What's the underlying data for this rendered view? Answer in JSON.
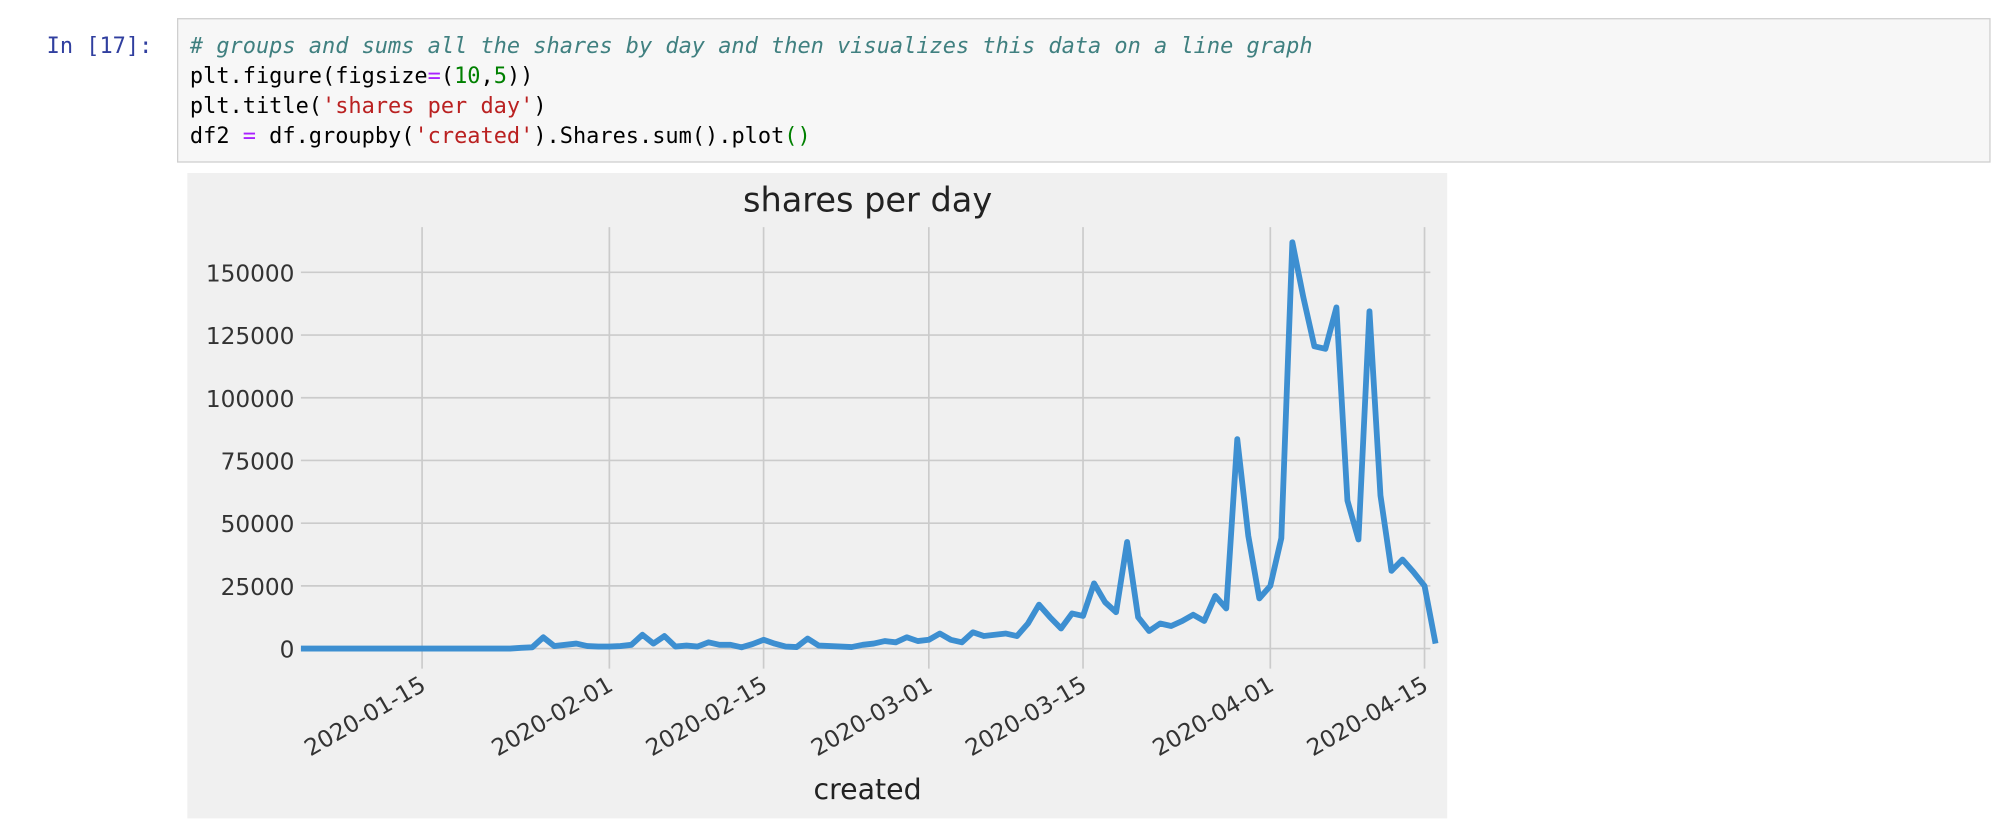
{
  "prompt": "In [17]:",
  "code": [
    [
      {
        "text": "# groups and sums all the shares by day and then visualizes this data on a line graph",
        "color": "#408080"
      }
    ],
    [
      {
        "text": "plt.figure(figsize",
        "color": "#000000"
      },
      {
        "text": "=",
        "color": "#aa22ff"
      },
      {
        "text": "(",
        "color": "#000000"
      },
      {
        "text": "10",
        "color": "#008000"
      },
      {
        "text": ",",
        "color": "#000000"
      },
      {
        "text": "5",
        "color": "#008000"
      },
      {
        "text": "))",
        "color": "#000000"
      }
    ],
    [
      {
        "text": "plt.title(",
        "color": "#000000"
      },
      {
        "text": "'shares per day'",
        "color": "#ba2121"
      },
      {
        "text": ")",
        "color": "#000000"
      }
    ],
    [
      {
        "text": "df2 ",
        "color": "#000000"
      },
      {
        "text": "=",
        "color": "#aa22ff"
      },
      {
        "text": " df.groupby(",
        "color": "#000000"
      },
      {
        "text": "'created'",
        "color": "#ba2121"
      },
      {
        "text": ").Shares.sum().plot",
        "color": "#000000"
      },
      {
        "text": "()",
        "color": "#008000"
      }
    ]
  ],
  "chart_data": {
    "type": "line",
    "title": "shares per day",
    "x_label": "created",
    "x": [
      "2020-01-04",
      "2020-01-05",
      "2020-01-06",
      "2020-01-07",
      "2020-01-08",
      "2020-01-09",
      "2020-01-10",
      "2020-01-11",
      "2020-01-12",
      "2020-01-13",
      "2020-01-14",
      "2020-01-15",
      "2020-01-16",
      "2020-01-17",
      "2020-01-18",
      "2020-01-19",
      "2020-01-20",
      "2020-01-21",
      "2020-01-22",
      "2020-01-23",
      "2020-01-24",
      "2020-01-25",
      "2020-01-26",
      "2020-01-27",
      "2020-01-28",
      "2020-01-29",
      "2020-01-30",
      "2020-01-31",
      "2020-02-01",
      "2020-02-02",
      "2020-02-03",
      "2020-02-04",
      "2020-02-05",
      "2020-02-06",
      "2020-02-07",
      "2020-02-08",
      "2020-02-09",
      "2020-02-10",
      "2020-02-11",
      "2020-02-12",
      "2020-02-13",
      "2020-02-14",
      "2020-02-15",
      "2020-02-16",
      "2020-02-17",
      "2020-02-18",
      "2020-02-19",
      "2020-02-20",
      "2020-02-21",
      "2020-02-22",
      "2020-02-23",
      "2020-02-24",
      "2020-02-25",
      "2020-02-26",
      "2020-02-27",
      "2020-02-28",
      "2020-02-29",
      "2020-03-01",
      "2020-03-02",
      "2020-03-03",
      "2020-03-04",
      "2020-03-05",
      "2020-03-06",
      "2020-03-07",
      "2020-03-08",
      "2020-03-09",
      "2020-03-10",
      "2020-03-11",
      "2020-03-12",
      "2020-03-13",
      "2020-03-14",
      "2020-03-15",
      "2020-03-16",
      "2020-03-17",
      "2020-03-18",
      "2020-03-19",
      "2020-03-20",
      "2020-03-21",
      "2020-03-22",
      "2020-03-23",
      "2020-03-24",
      "2020-03-25",
      "2020-03-26",
      "2020-03-27",
      "2020-03-28",
      "2020-03-29",
      "2020-03-30",
      "2020-03-31",
      "2020-04-01",
      "2020-04-02",
      "2020-04-03",
      "2020-04-04",
      "2020-04-05",
      "2020-04-06",
      "2020-04-07",
      "2020-04-08",
      "2020-04-09",
      "2020-04-10",
      "2020-04-11",
      "2020-04-12",
      "2020-04-13",
      "2020-04-14",
      "2020-04-15",
      "2020-04-16"
    ],
    "series": [
      {
        "name": "Shares",
        "color": "#3d8fd1",
        "values": [
          0,
          0,
          0,
          0,
          0,
          0,
          0,
          0,
          0,
          0,
          0,
          0,
          0,
          0,
          0,
          0,
          0,
          0,
          0,
          0,
          300,
          500,
          4500,
          1000,
          1500,
          2000,
          1000,
          800,
          800,
          1000,
          1500,
          5500,
          2000,
          5000,
          800,
          1200,
          800,
          2500,
          1500,
          1500,
          500,
          1800,
          3500,
          2000,
          800,
          600,
          4000,
          1200,
          1000,
          800,
          600,
          1500,
          2000,
          3000,
          2500,
          4500,
          3000,
          3500,
          6000,
          3500,
          2500,
          6500,
          5000,
          5500,
          6000,
          5000,
          10000,
          17500,
          12500,
          8000,
          14000,
          13000,
          26000,
          18500,
          14500,
          42500,
          12500,
          7000,
          10000,
          9000,
          11000,
          13500,
          11000,
          21000,
          16000,
          83500,
          45000,
          20000,
          25000,
          44000,
          162000,
          140000,
          120500,
          119500,
          136000,
          59000,
          43500,
          134500,
          61000,
          31000,
          35500,
          30500,
          25000,
          2000
        ]
      }
    ],
    "xlim": [
      "2020-01-04",
      "2020-04-16"
    ],
    "xticks": [
      "2020-01-15",
      "2020-02-01",
      "2020-02-15",
      "2020-03-01",
      "2020-03-15",
      "2020-04-01",
      "2020-04-15"
    ],
    "ylim": [
      -8000,
      168000
    ],
    "yticks": [
      0,
      25000,
      50000,
      75000,
      100000,
      125000,
      150000
    ],
    "grid": true
  }
}
